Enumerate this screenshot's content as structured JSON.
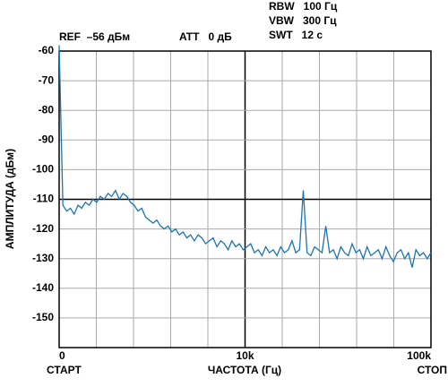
{
  "chart_data": {
    "type": "line",
    "header": [
      "REF  –56 дБм",
      "ATT   0 дБ",
      "RBW   100 Гц",
      "VBW   300 Гц",
      "SWT   12 с"
    ],
    "ylabel": "АМПЛИТУДА (дБм)",
    "xlabel": "ЧАСТОТА (Гц)",
    "x_start_label": "СТАРТ",
    "x_stop_label": "СТОП",
    "x_tick_labels": [
      "0",
      "10k",
      "100k"
    ],
    "ylim": [
      -160,
      -60
    ],
    "yticks": [
      -60,
      -70,
      -80,
      -90,
      -100,
      -110,
      -120,
      -130,
      -140,
      -150
    ],
    "bold_y": -110,
    "grid": true,
    "series": [
      {
        "color": "#1a75b0",
        "values": [
          -58,
          -112,
          -114,
          -113,
          -115,
          -112,
          -113,
          -111,
          -112,
          -110,
          -111,
          -109,
          -110,
          -108,
          -109,
          -107,
          -110,
          -108,
          -109,
          -111,
          -112,
          -114,
          -113,
          -116,
          -117,
          -118,
          -117,
          -119,
          -120,
          -119,
          -121,
          -120,
          -122,
          -121,
          -123,
          -122,
          -124,
          -122,
          -123,
          -125,
          -124,
          -123,
          -126,
          -124,
          -125,
          -127,
          -124,
          -126,
          -125,
          -127,
          -126,
          -125,
          -128,
          -127,
          -129,
          -126,
          -128,
          -127,
          -129,
          -126,
          -128,
          -127,
          -124,
          -128,
          -127,
          -107,
          -128,
          -129,
          -126,
          -127,
          -128,
          -119,
          -128,
          -127,
          -130,
          -126,
          -128,
          -129,
          -125,
          -128,
          -127,
          -130,
          -126,
          -129,
          -128,
          -127,
          -130,
          -126,
          -129,
          -131,
          -128,
          -127,
          -130,
          -128,
          -133,
          -127,
          -129,
          -128,
          -130,
          -128
        ]
      }
    ]
  }
}
